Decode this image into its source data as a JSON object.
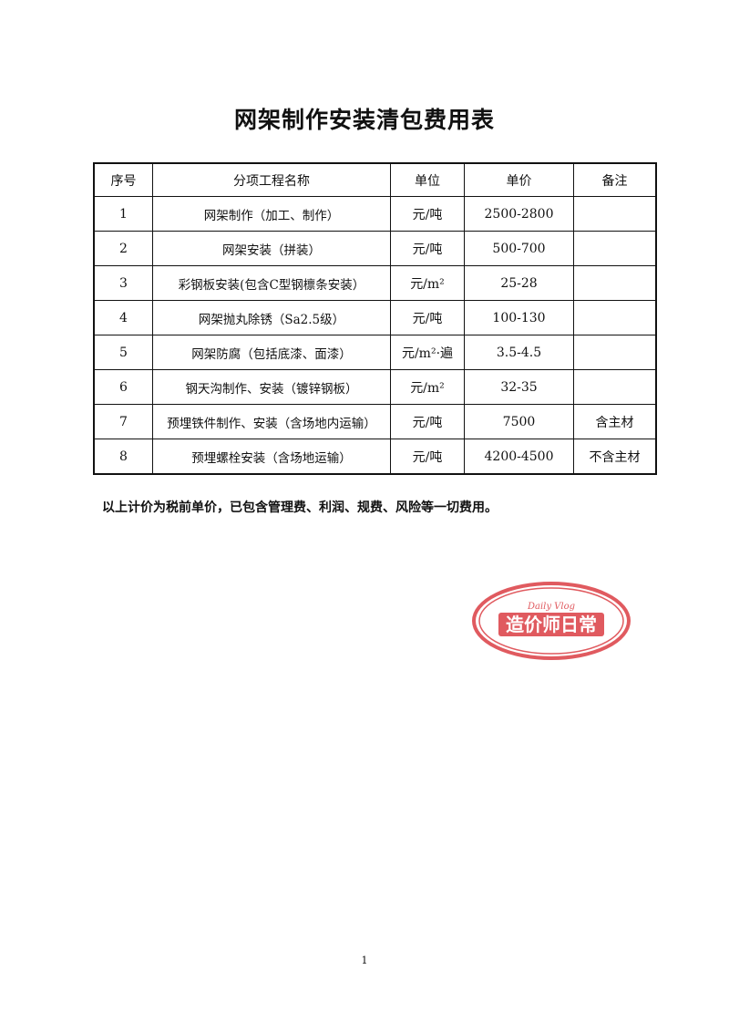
{
  "title": "网架制作安装清包费用表",
  "table": {
    "headers": [
      "序号",
      "分项工程名称",
      "单位",
      "单价",
      "备注"
    ],
    "rows": [
      [
        "1",
        "网架制作（加工、制作）",
        "元/吨",
        "2500-2800",
        ""
      ],
      [
        "2",
        "网架安装（拼装）",
        "元/吨",
        "500-700",
        ""
      ],
      [
        "3",
        "彩钢板安装(包含C型钢檩条安装）",
        "元/m²",
        "25-28",
        ""
      ],
      [
        "4",
        "网架抛丸除锈（Sa2.5级）",
        "元/吨",
        "100-130",
        ""
      ],
      [
        "5",
        "网架防腐（包括底漆、面漆）",
        "元/m²·遍",
        "3.5-4.5",
        ""
      ],
      [
        "6",
        "钢天沟制作、安装（镀锌钢板）",
        "元/m²",
        "32-35",
        ""
      ],
      [
        "7",
        "预埋铁件制作、安装（含场地内运输）",
        "元/吨",
        "7500",
        "含主材"
      ],
      [
        "8",
        "预埋螺栓安装（含场地运输）",
        "元/吨",
        "4200-4500",
        "不含主材"
      ]
    ]
  },
  "note": "以上计价为税前单价，已包含管理费、利润、规费、风险等一切费用。",
  "stamp": {
    "top_text": "Daily Vlog",
    "main_text": "造价师日常",
    "color": "#e05a5f"
  },
  "page_number": "1"
}
